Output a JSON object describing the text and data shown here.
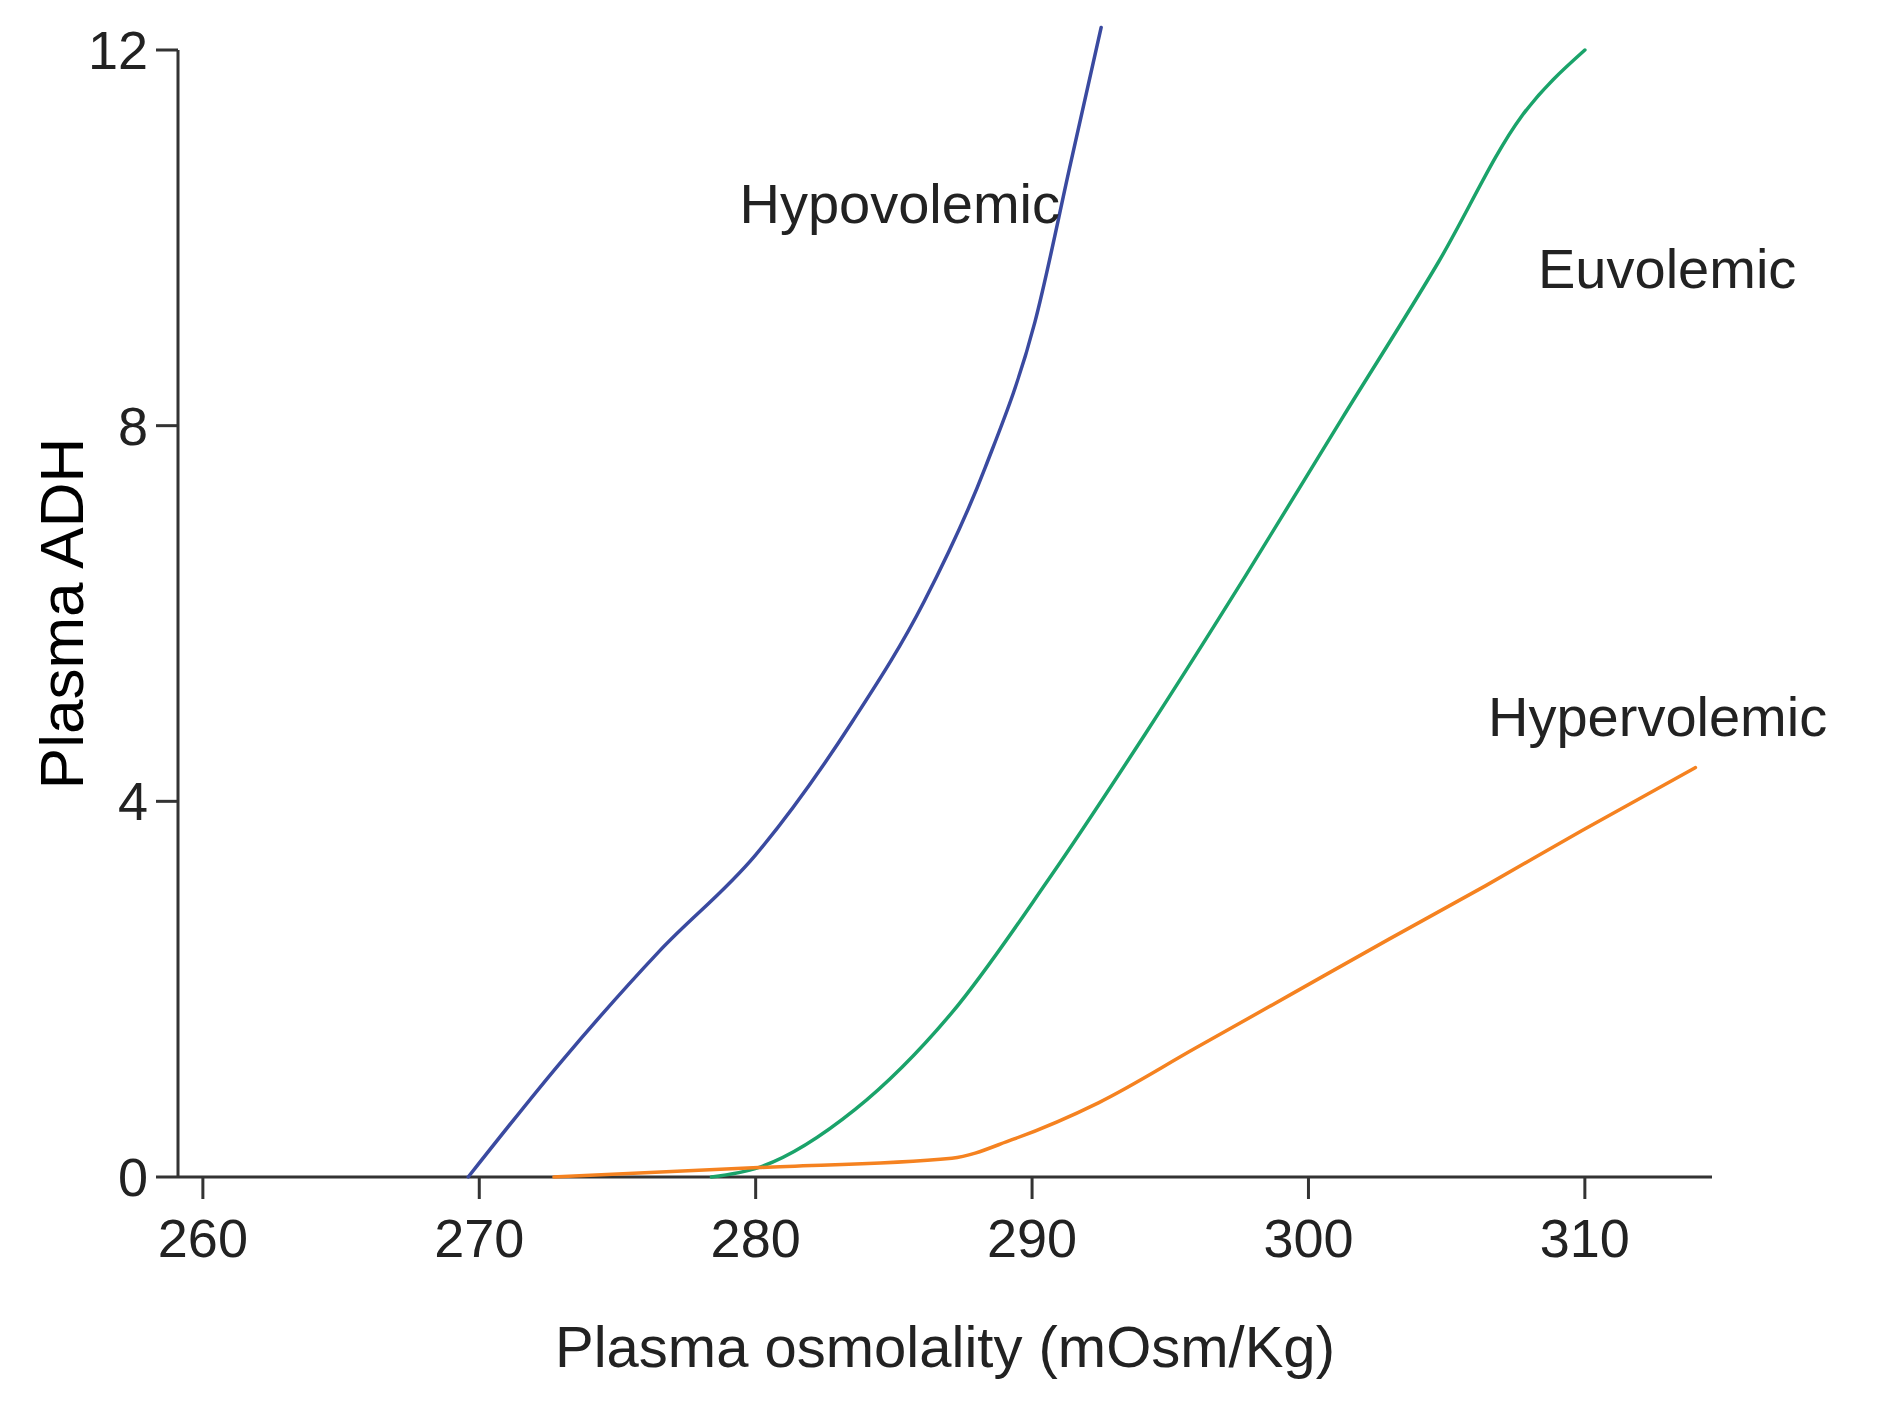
{
  "chart_data": {
    "type": "line",
    "xlabel": "Plasma osmolality (mOsm/Kg)",
    "ylabel": "Plasma ADH",
    "xlim": [
      259.1,
      314.6
    ],
    "ylim": [
      0,
      12.3
    ],
    "xticks": [
      260,
      270,
      280,
      290,
      300,
      310
    ],
    "yticks": [
      0,
      4,
      8,
      12
    ],
    "grid": false,
    "marker": "none",
    "line_style": "solid",
    "series": [
      {
        "name": "Hypovolemic",
        "color": "#3a4aa0",
        "x": [
          269.6,
          273.0,
          276.5,
          280.0,
          283.5,
          286.1,
          288.3,
          290.1,
          291.4,
          292.5
        ],
        "values": [
          0,
          1.24,
          2.4,
          3.43,
          4.85,
          6.13,
          7.55,
          9.1,
          10.8,
          12.24
        ]
      },
      {
        "name": "Euvolemic",
        "color": "#1aa36a",
        "x": [
          278.4,
          280.1,
          283.6,
          287.1,
          290.6,
          294.1,
          297.7,
          301.2,
          304.7,
          307.7,
          310
        ],
        "values": [
          0,
          0.1,
          0.72,
          1.75,
          3.17,
          4.72,
          6.39,
          8.07,
          9.74,
          11.29,
          12
        ]
      },
      {
        "name": "Hypervolemic",
        "color": "#f58220",
        "x": [
          272.7,
          280.1,
          287.1,
          289.3,
          292.4,
          295.9,
          299.4,
          302.9,
          306.4,
          309.9,
          314
        ],
        "values": [
          0,
          0.1,
          0.2,
          0.4,
          0.79,
          1.37,
          1.95,
          2.53,
          3.1,
          3.69,
          4.36
        ]
      }
    ]
  }
}
